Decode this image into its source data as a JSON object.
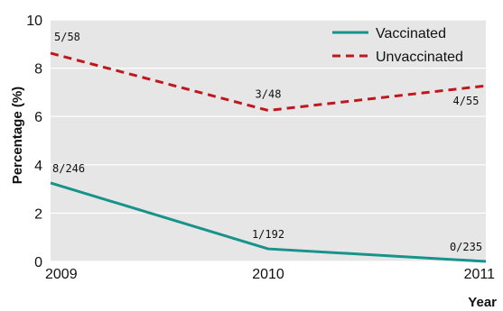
{
  "chart_data": {
    "type": "line",
    "xlabel": "Year",
    "ylabel": "Percentage (%)",
    "x": [
      2009,
      2010,
      2011
    ],
    "xticks": [
      "2009",
      "2010",
      "2011"
    ],
    "yticks": [
      "0",
      "2",
      "4",
      "6",
      "8",
      "10"
    ],
    "xlim": [
      2009,
      2011
    ],
    "ylim": [
      0,
      10
    ],
    "grid": "horizontal",
    "legend_position": "top-right",
    "series": [
      {
        "name": "Vaccinated",
        "values": [
          3.25,
          0.52,
          0.0
        ],
        "labels": [
          "8/246",
          "1/192",
          "0/235"
        ],
        "color": "#17938a",
        "style": "solid"
      },
      {
        "name": "Unvaccinated",
        "values": [
          8.62,
          6.25,
          7.27
        ],
        "labels": [
          "5/58",
          "3/48",
          "4/55"
        ],
        "color": "#c0161e",
        "style": "dashed"
      }
    ],
    "background_color": "#e6e6e6",
    "grid_color": "#ffffff"
  }
}
